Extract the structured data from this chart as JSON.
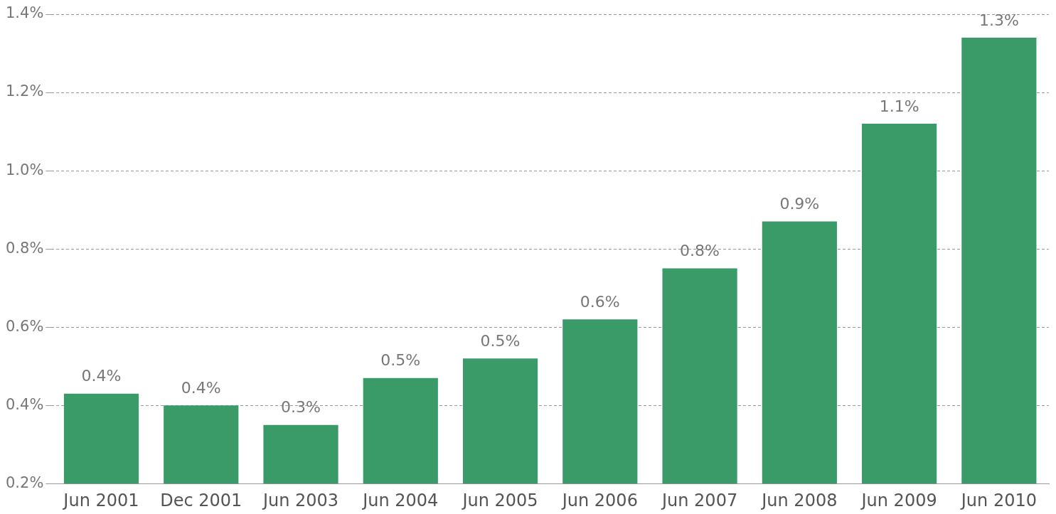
{
  "chart_data": {
    "type": "bar",
    "categories": [
      "Jun 2001",
      "Dec 2001",
      "Jun 2003",
      "Jun 2004",
      "Jun 2005",
      "Jun 2006",
      "Jun 2007",
      "Jun 2008",
      "Jun 2009",
      "Jun 2010"
    ],
    "values": [
      0.43,
      0.4,
      0.35,
      0.47,
      0.52,
      0.62,
      0.75,
      0.87,
      1.12,
      1.34
    ],
    "value_labels": [
      "0.4%",
      "0.4%",
      "0.3%",
      "0.5%",
      "0.5%",
      "0.6%",
      "0.8%",
      "0.9%",
      "1.1%",
      "1.3%"
    ],
    "color": "#3a9a68",
    "ylim": [
      0.2,
      1.4
    ],
    "yticks": [
      {
        "value": 0.2,
        "label": "0.2%"
      },
      {
        "value": 0.4,
        "label": "0.4%"
      },
      {
        "value": 0.6,
        "label": "0.6%"
      },
      {
        "value": 0.8,
        "label": "0.8%"
      },
      {
        "value": 1.0,
        "label": "1.0%"
      },
      {
        "value": 1.2,
        "label": "1.2%"
      },
      {
        "value": 1.4,
        "label": "1.4%"
      }
    ],
    "grid": "y",
    "line_style": "dashed"
  }
}
